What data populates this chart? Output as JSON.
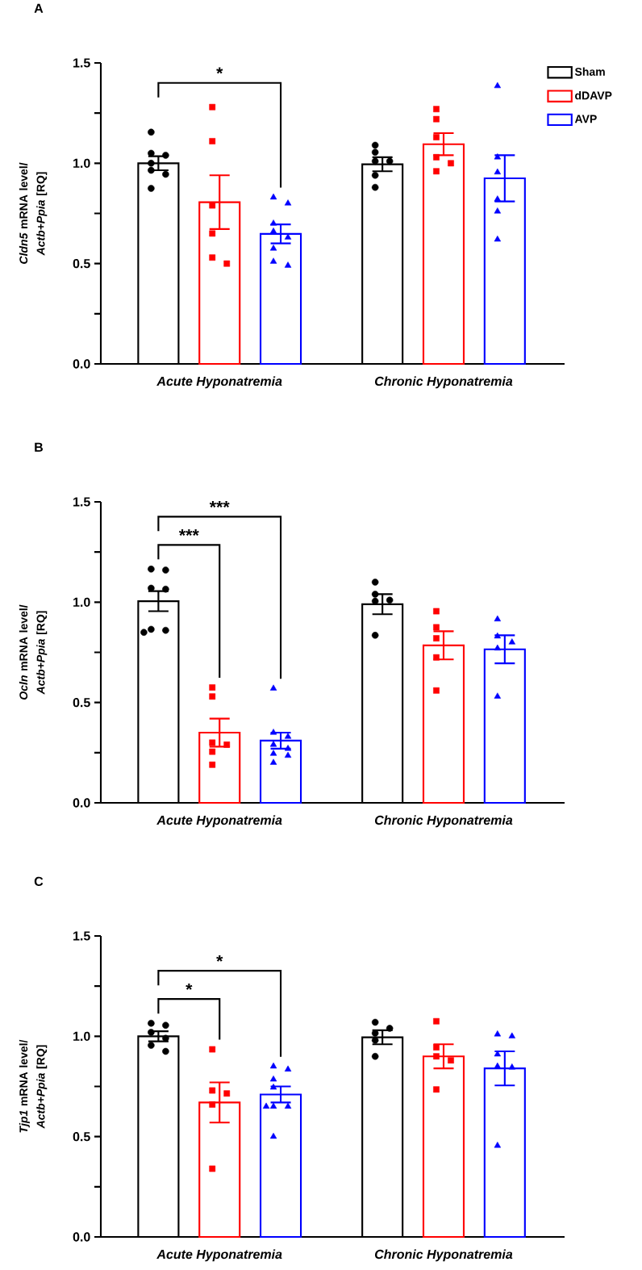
{
  "chart_data": [
    {
      "type": "bar",
      "title": "A",
      "ylabel": "*Cldn5* mRNA level/ *Actb+Ppia* [RQ]",
      "categories": [
        "Acute Hyponatremia",
        "Chronic Hyponatremia"
      ],
      "ylim": [
        0,
        1.5
      ],
      "yticks": [
        {
          "value": 0,
          "label": "0.0"
        },
        {
          "value": 0.25,
          "label": null
        },
        {
          "value": 0.5,
          "label": "0.5"
        },
        {
          "value": 0.75,
          "label": null
        },
        {
          "value": 1,
          "label": "1.0"
        },
        {
          "value": 1.25,
          "label": null
        },
        {
          "value": 1.5,
          "label": "1.5"
        }
      ],
      "legend": "top right",
      "annotations": [
        "*"
      ],
      "series": [
        {
          "name": "Sham",
          "color": "#000000",
          "values": [
            1.0,
            0.995
          ],
          "errors": [
            0.035,
            0.035
          ]
        },
        {
          "name": "dDAVP",
          "color": "#ff0000",
          "values": [
            0.806,
            1.095
          ],
          "errors": [
            0.134,
            0.055
          ]
        },
        {
          "name": "AVP",
          "color": "#0000ff",
          "values": [
            0.648,
            0.925
          ],
          "errors": [
            0.047,
            0.115
          ]
        },
        {
          "type": "scatter",
          "color": "#000000",
          "marker": "circle",
          "x": [
            "Acute Hyponatremia",
            "Acute Hyponatremia",
            "Acute Hyponatremia",
            "Acute Hyponatremia",
            "Acute Hyponatremia",
            "Acute Hyponatremia",
            "Acute Hyponatremia",
            "Chronic Hyponatremia",
            "Chronic Hyponatremia",
            "Chronic Hyponatremia",
            "Chronic Hyponatremia",
            "Chronic Hyponatremia",
            "Chronic Hyponatremia"
          ],
          "values": [
            1.155,
            1.05,
            1.04,
            1.0,
            0.965,
            0.945,
            0.875,
            1.09,
            1.055,
            1.01,
            1.01,
            0.94,
            0.88
          ]
        },
        {
          "type": "scatter",
          "color": "#ff0000",
          "marker": "square",
          "x": [
            "Acute Hyponatremia",
            "Acute Hyponatremia",
            "Acute Hyponatremia",
            "Acute Hyponatremia",
            "Acute Hyponatremia",
            "Acute Hyponatremia",
            "Chronic Hyponatremia",
            "Chronic Hyponatremia",
            "Chronic Hyponatremia",
            "Chronic Hyponatremia",
            "Chronic Hyponatremia",
            "Chronic Hyponatremia"
          ],
          "values": [
            1.28,
            1.11,
            0.79,
            0.65,
            0.53,
            0.5,
            1.27,
            1.22,
            1.13,
            1.03,
            1.0,
            0.96
          ]
        },
        {
          "type": "scatter",
          "color": "#0000ff",
          "marker": "triangle",
          "x": [
            "Acute Hyponatremia",
            "Acute Hyponatremia",
            "Acute Hyponatremia",
            "Acute Hyponatremia",
            "Acute Hyponatremia",
            "Acute Hyponatremia",
            "Acute Hyponatremia",
            "Acute Hyponatremia",
            "Chronic Hyponatremia",
            "Chronic Hyponatremia",
            "Chronic Hyponatremia",
            "Chronic Hyponatremia",
            "Chronic Hyponatremia",
            "Chronic Hyponatremia"
          ],
          "values": [
            0.83,
            0.8,
            0.7,
            0.66,
            0.63,
            0.575,
            0.51,
            0.49,
            1.385,
            1.03,
            0.955,
            0.82,
            0.76,
            0.62
          ]
        }
      ]
    },
    {
      "type": "bar",
      "title": "B",
      "ylabel": "*Ocln* mRNA level/ *Actb+Ppia* [RQ]",
      "categories": [
        "Acute Hyponatremia",
        "Chronic Hyponatremia"
      ],
      "ylim": [
        0,
        1.5
      ],
      "yticks": [
        {
          "value": 0,
          "label": "0.0"
        },
        {
          "value": 0.25,
          "label": null
        },
        {
          "value": 0.5,
          "label": "0.5"
        },
        {
          "value": 0.75,
          "label": null
        },
        {
          "value": 1,
          "label": "1.0"
        },
        {
          "value": 1.25,
          "label": null
        },
        {
          "value": 1.5,
          "label": "1.5"
        }
      ],
      "annotations": [
        "***",
        "***"
      ],
      "series": [
        {
          "color": "#000000",
          "values": [
            1.005,
            0.99
          ],
          "errors": [
            0.05,
            0.05
          ]
        },
        {
          "color": "#ff0000",
          "values": [
            0.35,
            0.785
          ],
          "errors": [
            0.07,
            0.07
          ]
        },
        {
          "color": "#0000ff",
          "values": [
            0.31,
            0.765
          ],
          "errors": [
            0.04,
            0.07
          ]
        },
        {
          "type": "scatter",
          "color": "#000000",
          "marker": "circle",
          "x": [
            "Acute Hyponatremia",
            "Acute Hyponatremia",
            "Acute Hyponatremia",
            "Acute Hyponatremia",
            "Acute Hyponatremia",
            "Acute Hyponatremia",
            "Acute Hyponatremia",
            "Chronic Hyponatremia",
            "Chronic Hyponatremia",
            "Chronic Hyponatremia",
            "Chronic Hyponatremia",
            "Chronic Hyponatremia"
          ],
          "values": [
            1.165,
            1.16,
            1.07,
            1.065,
            0.865,
            0.86,
            0.85,
            1.1,
            1.04,
            1.01,
            1.005,
            0.835
          ]
        },
        {
          "type": "scatter",
          "color": "#ff0000",
          "marker": "square",
          "x": [
            "Acute Hyponatremia",
            "Acute Hyponatremia",
            "Acute Hyponatremia",
            "Acute Hyponatremia",
            "Acute Hyponatremia",
            "Acute Hyponatremia",
            "Chronic Hyponatremia",
            "Chronic Hyponatremia",
            "Chronic Hyponatremia",
            "Chronic Hyponatremia",
            "Chronic Hyponatremia"
          ],
          "values": [
            0.575,
            0.53,
            0.3,
            0.29,
            0.255,
            0.19,
            0.955,
            0.875,
            0.82,
            0.725,
            0.56
          ]
        },
        {
          "type": "scatter",
          "color": "#0000ff",
          "marker": "triangle",
          "x": [
            "Acute Hyponatremia",
            "Acute Hyponatremia",
            "Acute Hyponatremia",
            "Acute Hyponatremia",
            "Acute Hyponatremia",
            "Acute Hyponatremia",
            "Acute Hyponatremia",
            "Acute Hyponatremia",
            "Chronic Hyponatremia",
            "Chronic Hyponatremia",
            "Chronic Hyponatremia",
            "Chronic Hyponatremia",
            "Chronic Hyponatremia"
          ],
          "values": [
            0.57,
            0.35,
            0.33,
            0.29,
            0.27,
            0.245,
            0.235,
            0.2,
            0.915,
            0.83,
            0.8,
            0.77,
            0.53
          ]
        }
      ]
    },
    {
      "type": "bar",
      "title": "C",
      "ylabel": "*Tjp1* mRNA level/ *Actb+Ppia* [RQ]",
      "categories": [
        "Acute Hyponatremia",
        "Chronic Hyponatremia"
      ],
      "ylim": [
        0,
        1.5
      ],
      "yticks": [
        {
          "value": 0,
          "label": "0.0"
        },
        {
          "value": 0.25,
          "label": null
        },
        {
          "value": 0.5,
          "label": "0.5"
        },
        {
          "value": 0.75,
          "label": null
        },
        {
          "value": 1,
          "label": "1.0"
        },
        {
          "value": 1.25,
          "label": null
        },
        {
          "value": 1.5,
          "label": "1.5"
        }
      ],
      "annotations": [
        "*",
        "*"
      ],
      "series": [
        {
          "color": "#000000",
          "values": [
            1.0,
            0.995
          ],
          "errors": [
            0.025,
            0.035
          ]
        },
        {
          "color": "#ff0000",
          "values": [
            0.67,
            0.9
          ],
          "errors": [
            0.1,
            0.06
          ]
        },
        {
          "color": "#0000ff",
          "values": [
            0.71,
            0.84
          ],
          "errors": [
            0.04,
            0.085
          ]
        },
        {
          "type": "scatter",
          "color": "#000000",
          "marker": "circle",
          "x": [
            "Acute Hyponatremia",
            "Acute Hyponatremia",
            "Acute Hyponatremia",
            "Acute Hyponatremia",
            "Acute Hyponatremia",
            "Acute Hyponatremia",
            "Chronic Hyponatremia",
            "Chronic Hyponatremia",
            "Chronic Hyponatremia",
            "Chronic Hyponatremia",
            "Chronic Hyponatremia"
          ],
          "values": [
            1.065,
            1.055,
            1.02,
            0.99,
            0.955,
            0.925,
            1.07,
            1.04,
            1.015,
            0.98,
            0.9
          ]
        },
        {
          "type": "scatter",
          "color": "#ff0000",
          "marker": "square",
          "x": [
            "Acute Hyponatremia",
            "Acute Hyponatremia",
            "Acute Hyponatremia",
            "Acute Hyponatremia",
            "Acute Hyponatremia",
            "Chronic Hyponatremia",
            "Chronic Hyponatremia",
            "Chronic Hyponatremia",
            "Chronic Hyponatremia",
            "Chronic Hyponatremia"
          ],
          "values": [
            0.935,
            0.73,
            0.715,
            0.66,
            0.34,
            1.075,
            0.945,
            0.9,
            0.88,
            0.735
          ]
        },
        {
          "type": "scatter",
          "color": "#0000ff",
          "marker": "triangle",
          "x": [
            "Acute Hyponatremia",
            "Acute Hyponatremia",
            "Acute Hyponatremia",
            "Acute Hyponatremia",
            "Acute Hyponatremia",
            "Acute Hyponatremia",
            "Acute Hyponatremia",
            "Acute Hyponatremia",
            "Chronic Hyponatremia",
            "Chronic Hyponatremia",
            "Chronic Hyponatremia",
            "Chronic Hyponatremia",
            "Chronic Hyponatremia",
            "Chronic Hyponatremia"
          ],
          "values": [
            0.85,
            0.835,
            0.785,
            0.745,
            0.65,
            0.65,
            0.65,
            0.5,
            1.01,
            1.0,
            0.91,
            0.85,
            0.845,
            0.455
          ]
        }
      ]
    }
  ]
}
